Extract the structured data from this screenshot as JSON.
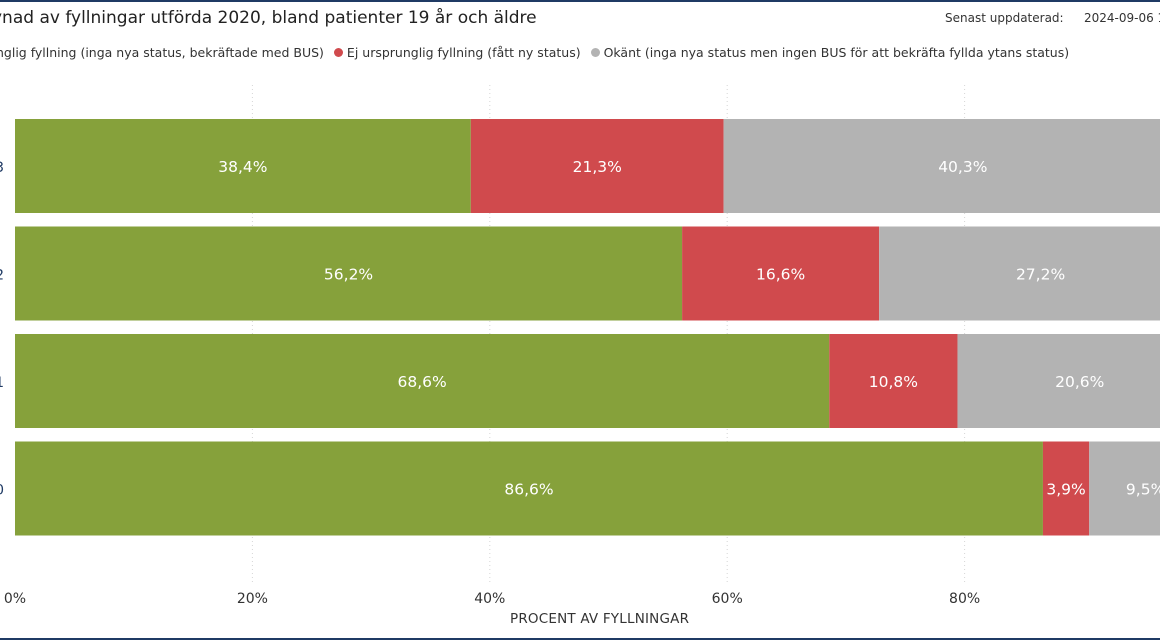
{
  "header": {
    "title": "ynad av fyllningar utförda 2020, bland patienter 19 år och äldre",
    "updated_label": "Senast uppdaterad:",
    "updated_value": "2024-09-06 1"
  },
  "legend": [
    {
      "label": "nglig fyllning (inga nya status, bekräftade med BUS)",
      "color": "#86a13b",
      "show_dot": false
    },
    {
      "label": "Ej ursprunglig fyllning (fått ny status)",
      "color": "#d04a4d",
      "show_dot": true
    },
    {
      "label": "Okänt (inga nya status men ingen BUS för att bekräfta fyllda ytans status)",
      "color": "#b3b3b3",
      "show_dot": true
    }
  ],
  "chart_data": {
    "type": "bar",
    "orientation": "horizontal",
    "stacked": true,
    "categories": [
      "3",
      "2",
      "1",
      "0"
    ],
    "series": [
      {
        "values": [
          38.4,
          56.2,
          68.6,
          86.6
        ],
        "labels": [
          "38,4%",
          "56,2%",
          "68,6%",
          "86,6%"
        ],
        "color": "#86a13b"
      },
      {
        "values": [
          21.3,
          16.6,
          10.8,
          3.9
        ],
        "labels": [
          "21,3%",
          "16,6%",
          "10,8%",
          "3,9%"
        ],
        "color": "#d04a4d"
      },
      {
        "values": [
          40.3,
          27.2,
          20.6,
          9.5
        ],
        "labels": [
          "40,3%",
          "27,2%",
          "20,6%",
          "9,5%"
        ],
        "color": "#b3b3b3"
      }
    ],
    "xticks": [
      "0%",
      "20%",
      "40%",
      "60%",
      "80%"
    ],
    "xtick_values": [
      0,
      20,
      40,
      60,
      80
    ],
    "xlim": [
      0,
      100
    ],
    "xlabel": "PROCENT AV FYLLNINGAR",
    "grid": true
  }
}
